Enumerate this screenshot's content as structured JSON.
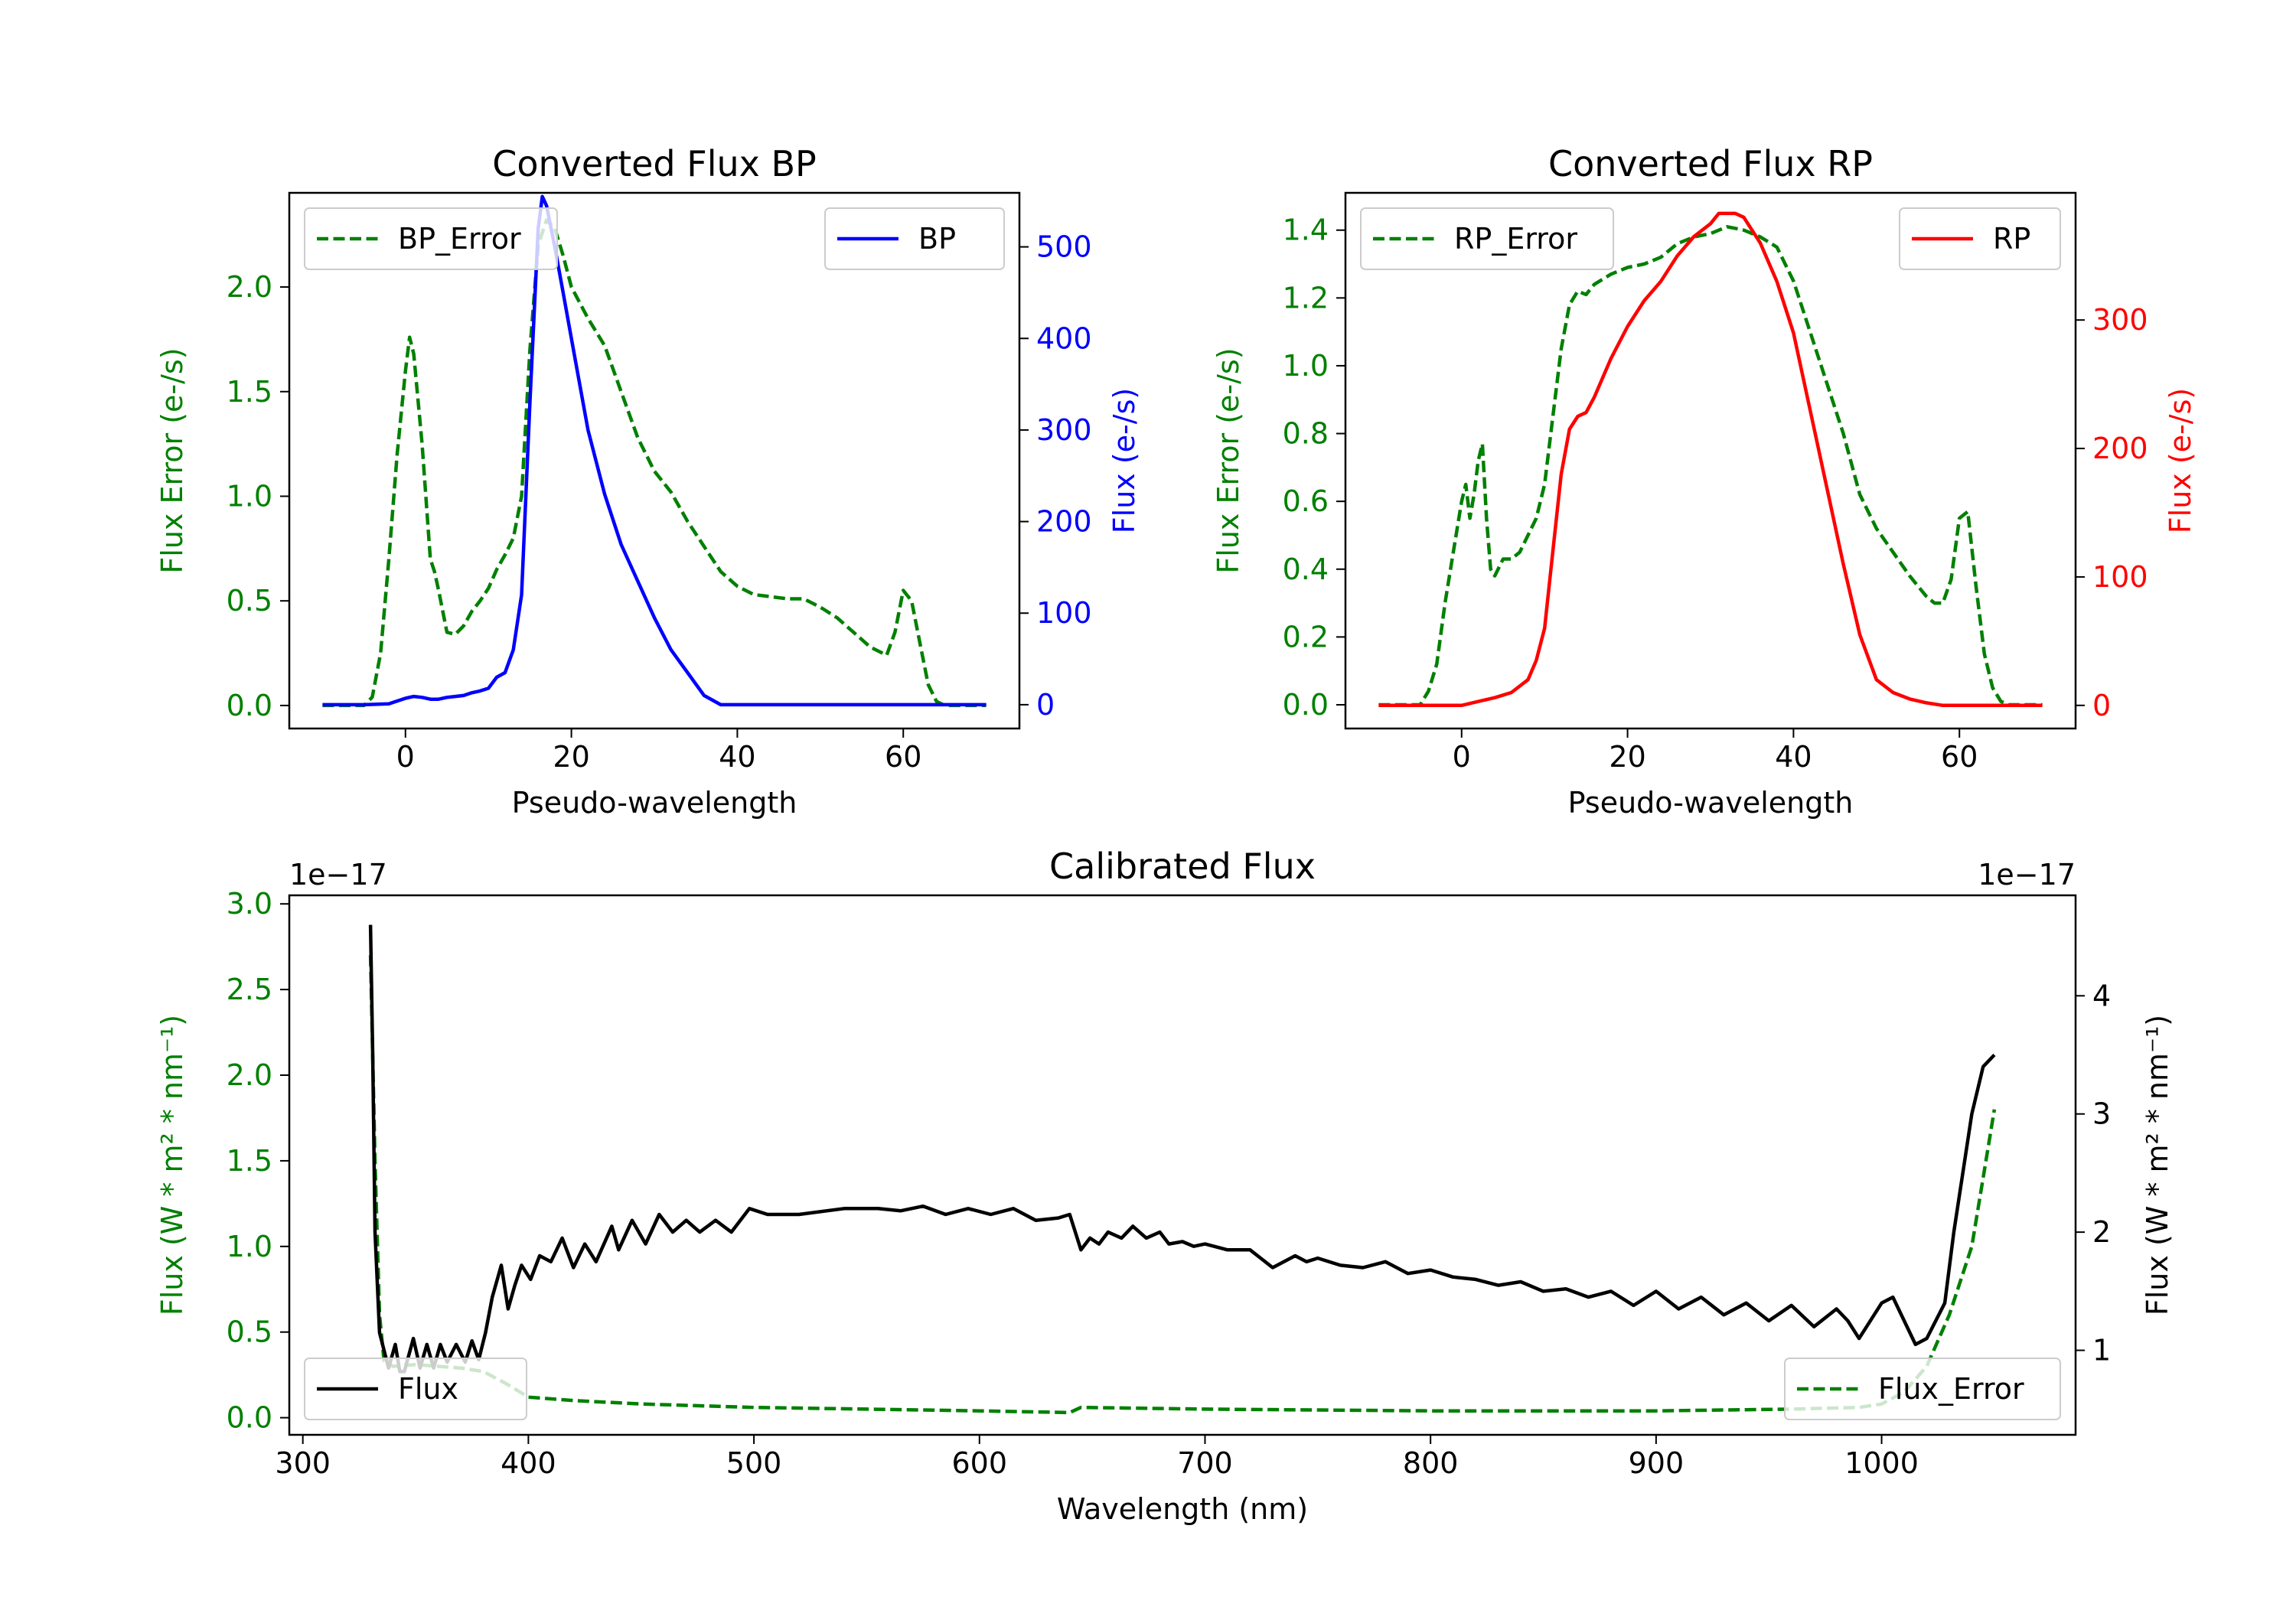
{
  "chart_data": [
    {
      "id": "bp",
      "type": "line",
      "title": "Converted Flux BP",
      "xlabel": "Pseudo-wavelength",
      "ylabel_left": "Flux Error (e-/s)",
      "ylabel_right": "Flux (e-/s)",
      "xlim": [
        -14,
        74
      ],
      "ylim_left": [
        -0.11,
        2.45
      ],
      "ylim_right": [
        -26,
        559
      ],
      "xticks": [
        0,
        20,
        40,
        60
      ],
      "yticks_left": [
        0.0,
        0.5,
        1.0,
        1.5,
        2.0
      ],
      "yticks_left_labels": [
        "0.0",
        "0.5",
        "1.0",
        "1.5",
        "2.0"
      ],
      "yticks_right": [
        0,
        100,
        200,
        300,
        400,
        500
      ],
      "yticks_right_labels": [
        "0",
        "100",
        "200",
        "300",
        "400",
        "500"
      ],
      "colors": {
        "left": "#008000",
        "right": "#0000ff"
      },
      "series": [
        {
          "name": "BP_Error",
          "axis": "left",
          "style": "dashed",
          "color": "#008000",
          "x": [
            -10,
            -5,
            -4,
            -3,
            -2,
            -1,
            0,
            0.5,
            1,
            2,
            3,
            3.5,
            4,
            5,
            6,
            7,
            8,
            9,
            10,
            11,
            12,
            13,
            14,
            15,
            16,
            17,
            18,
            19,
            20,
            22,
            24,
            26,
            28,
            30,
            32,
            34,
            36,
            38,
            40,
            42,
            44,
            46,
            48,
            50,
            52,
            54,
            56,
            58,
            59,
            60,
            61,
            62,
            63,
            64,
            65,
            66,
            68,
            70
          ],
          "values": [
            0,
            0,
            0.04,
            0.25,
            0.7,
            1.2,
            1.6,
            1.76,
            1.68,
            1.25,
            0.7,
            0.64,
            0.55,
            0.35,
            0.34,
            0.38,
            0.45,
            0.5,
            0.56,
            0.65,
            0.72,
            0.8,
            1.0,
            1.7,
            2.2,
            2.32,
            2.28,
            2.15,
            2.0,
            1.85,
            1.72,
            1.5,
            1.28,
            1.12,
            1.02,
            0.88,
            0.76,
            0.64,
            0.57,
            0.53,
            0.52,
            0.51,
            0.51,
            0.47,
            0.42,
            0.35,
            0.28,
            0.24,
            0.35,
            0.55,
            0.5,
            0.3,
            0.1,
            0.02,
            0.0,
            0.0,
            0.0,
            0.0
          ]
        },
        {
          "name": "BP",
          "axis": "right",
          "style": "solid",
          "color": "#0000ff",
          "x": [
            -10,
            -5,
            -2,
            0,
            1,
            2,
            3,
            4,
            5,
            6,
            7,
            8,
            9,
            10,
            11,
            12,
            13,
            14,
            15,
            16,
            16.5,
            17,
            18,
            19,
            20,
            22,
            24,
            26,
            28,
            30,
            32,
            34,
            36,
            38,
            40,
            42,
            44,
            46,
            48,
            50,
            55,
            60,
            65,
            70
          ],
          "values": [
            0,
            0,
            1,
            7,
            9,
            8,
            6,
            6,
            8,
            9,
            10,
            13,
            15,
            18,
            30,
            35,
            60,
            120,
            330,
            520,
            555,
            545,
            500,
            450,
            400,
            300,
            230,
            175,
            135,
            95,
            60,
            35,
            10,
            0,
            0,
            0,
            0,
            0,
            0,
            0,
            0,
            0,
            0,
            0
          ]
        }
      ],
      "legends": [
        {
          "label": "BP_Error",
          "style": "dashed",
          "color": "#008000",
          "placement": "upper left"
        },
        {
          "label": "BP",
          "style": "solid",
          "color": "#0000ff",
          "placement": "upper right"
        }
      ]
    },
    {
      "id": "rp",
      "type": "line",
      "title": "Converted Flux RP",
      "xlabel": "Pseudo-wavelength",
      "ylabel_left": "Flux Error (e-/s)",
      "ylabel_right": "Flux (e-/s)",
      "xlim": [
        -14,
        74
      ],
      "ylim_left": [
        -0.07,
        1.51
      ],
      "ylim_right": [
        -18,
        399
      ],
      "xticks": [
        0,
        20,
        40,
        60
      ],
      "yticks_left": [
        0.0,
        0.2,
        0.4,
        0.6,
        0.8,
        1.0,
        1.2,
        1.4
      ],
      "yticks_left_labels": [
        "0.0",
        "0.2",
        "0.4",
        "0.6",
        "0.8",
        "1.0",
        "1.2",
        "1.4"
      ],
      "yticks_right": [
        0,
        100,
        200,
        300
      ],
      "yticks_right_labels": [
        "0",
        "100",
        "200",
        "300"
      ],
      "colors": {
        "left": "#008000",
        "right": "#ff0000"
      },
      "series": [
        {
          "name": "RP_Error",
          "axis": "left",
          "style": "dashed",
          "color": "#008000",
          "x": [
            -10,
            -5,
            -4,
            -3,
            -2,
            -1,
            0,
            0.5,
            1,
            1.5,
            2,
            2.5,
            3,
            3.5,
            4,
            5,
            6,
            7,
            8,
            9,
            10,
            11,
            12,
            13,
            14,
            15,
            16,
            18,
            20,
            22,
            24,
            26,
            28,
            30,
            32,
            34,
            36,
            38,
            40,
            42,
            44,
            46,
            48,
            50,
            52,
            54,
            55,
            56,
            57,
            58,
            59,
            60,
            61,
            62,
            63,
            64,
            65,
            66,
            68,
            70
          ],
          "values": [
            0,
            0,
            0.04,
            0.12,
            0.3,
            0.45,
            0.6,
            0.65,
            0.55,
            0.62,
            0.72,
            0.77,
            0.55,
            0.4,
            0.38,
            0.43,
            0.43,
            0.45,
            0.5,
            0.55,
            0.65,
            0.85,
            1.05,
            1.18,
            1.22,
            1.21,
            1.24,
            1.27,
            1.29,
            1.3,
            1.32,
            1.36,
            1.38,
            1.39,
            1.41,
            1.4,
            1.38,
            1.35,
            1.25,
            1.1,
            0.95,
            0.8,
            0.62,
            0.52,
            0.45,
            0.38,
            0.35,
            0.32,
            0.3,
            0.3,
            0.37,
            0.55,
            0.57,
            0.35,
            0.15,
            0.05,
            0.01,
            0.0,
            0.0,
            0.0
          ]
        },
        {
          "name": "RP",
          "axis": "right",
          "style": "solid",
          "color": "#ff0000",
          "x": [
            -10,
            -5,
            -2,
            0,
            2,
            4,
            6,
            8,
            9,
            10,
            11,
            12,
            13,
            14,
            15,
            16,
            18,
            20,
            22,
            24,
            26,
            28,
            30,
            31,
            32,
            33,
            34,
            35,
            36,
            38,
            40,
            42,
            44,
            46,
            48,
            50,
            52,
            54,
            56,
            58,
            60,
            62,
            64,
            66,
            68,
            70
          ],
          "values": [
            0,
            0,
            0,
            0,
            3,
            6,
            10,
            20,
            35,
            60,
            120,
            180,
            215,
            225,
            228,
            240,
            270,
            295,
            315,
            330,
            350,
            365,
            375,
            383,
            383,
            383,
            380,
            370,
            360,
            330,
            290,
            230,
            170,
            110,
            55,
            20,
            10,
            5,
            2,
            0,
            0,
            0,
            0,
            0,
            0,
            0
          ]
        }
      ],
      "legends": [
        {
          "label": "RP_Error",
          "style": "dashed",
          "color": "#008000",
          "placement": "upper left"
        },
        {
          "label": "RP",
          "style": "solid",
          "color": "#ff0000",
          "placement": "upper right"
        }
      ]
    },
    {
      "id": "cal",
      "type": "line",
      "title": "Calibrated Flux",
      "xlabel": "Wavelength (nm)",
      "ylabel_left": "Flux (W * m² * nm⁻¹)",
      "ylabel_right": "Flux (W * m² * nm⁻¹)",
      "offset_left": "1e−17",
      "offset_right": "1e−17",
      "xlim": [
        294,
        1086
      ],
      "ylim_left": [
        -0.1,
        3.05
      ],
      "ylim_right": [
        0.285,
        4.85
      ],
      "xticks": [
        300,
        400,
        500,
        600,
        700,
        800,
        900,
        1000
      ],
      "yticks_left": [
        0.0,
        0.5,
        1.0,
        1.5,
        2.0,
        2.5,
        3.0
      ],
      "yticks_left_labels": [
        "0.0",
        "0.5",
        "1.0",
        "1.5",
        "2.0",
        "2.5",
        "3.0"
      ],
      "yticks_right": [
        1,
        2,
        3,
        4
      ],
      "yticks_right_labels": [
        "1",
        "2",
        "3",
        "4"
      ],
      "colors": {
        "left": "#008000",
        "right": "#000000"
      },
      "series": [
        {
          "name": "Flux_Error",
          "axis": "left",
          "style": "dashed",
          "color": "#008000",
          "x": [
            330,
            332,
            334,
            336,
            340,
            350,
            360,
            370,
            380,
            390,
            400,
            420,
            450,
            500,
            550,
            600,
            640,
            645,
            700,
            800,
            900,
            960,
            990,
            1000,
            1010,
            1020,
            1030,
            1040,
            1045,
            1050
          ],
          "values": [
            2.7,
            1.5,
            0.6,
            0.33,
            0.3,
            0.31,
            0.3,
            0.29,
            0.27,
            0.2,
            0.12,
            0.1,
            0.08,
            0.06,
            0.05,
            0.04,
            0.03,
            0.06,
            0.05,
            0.04,
            0.04,
            0.05,
            0.06,
            0.08,
            0.15,
            0.3,
            0.6,
            1.0,
            1.4,
            1.8
          ]
        },
        {
          "name": "Flux",
          "axis": "right",
          "style": "solid",
          "color": "#000000",
          "x": [
            330,
            331,
            332,
            334,
            336,
            338,
            341,
            343,
            345,
            349,
            352,
            355,
            358,
            361,
            364,
            368,
            372,
            375,
            378,
            381,
            384,
            388,
            391,
            394,
            397,
            401,
            405,
            410,
            415,
            420,
            425,
            430,
            437,
            440,
            446,
            452,
            458,
            464,
            470,
            476,
            483,
            490,
            498,
            506,
            520,
            540,
            555,
            565,
            575,
            585,
            595,
            605,
            615,
            625,
            635,
            640,
            645,
            649,
            653,
            657,
            663,
            668,
            674,
            680,
            684,
            690,
            695,
            700,
            710,
            720,
            730,
            740,
            745,
            750,
            760,
            770,
            780,
            790,
            800,
            810,
            820,
            830,
            840,
            850,
            860,
            870,
            880,
            890,
            900,
            910,
            920,
            930,
            940,
            950,
            960,
            970,
            980,
            985,
            990,
            1000,
            1005,
            1015,
            1020,
            1028,
            1032,
            1040,
            1045,
            1050
          ],
          "values": [
            4.6,
            3.5,
            2.0,
            1.15,
            1.0,
            0.85,
            1.05,
            0.82,
            0.82,
            1.1,
            0.85,
            1.05,
            0.85,
            1.05,
            0.9,
            1.05,
            0.9,
            1.08,
            0.92,
            1.15,
            1.45,
            1.72,
            1.35,
            1.55,
            1.72,
            1.6,
            1.8,
            1.75,
            1.95,
            1.7,
            1.9,
            1.75,
            2.05,
            1.85,
            2.1,
            1.9,
            2.15,
            2.0,
            2.1,
            2.0,
            2.1,
            2.0,
            2.2,
            2.15,
            2.15,
            2.2,
            2.2,
            2.18,
            2.22,
            2.15,
            2.2,
            2.15,
            2.2,
            2.1,
            2.12,
            2.15,
            1.85,
            1.95,
            1.9,
            2.0,
            1.95,
            2.05,
            1.95,
            2.0,
            1.9,
            1.92,
            1.88,
            1.9,
            1.85,
            1.85,
            1.7,
            1.8,
            1.75,
            1.78,
            1.72,
            1.7,
            1.75,
            1.65,
            1.68,
            1.62,
            1.6,
            1.55,
            1.58,
            1.5,
            1.52,
            1.45,
            1.5,
            1.38,
            1.5,
            1.35,
            1.45,
            1.3,
            1.4,
            1.25,
            1.38,
            1.2,
            1.35,
            1.25,
            1.1,
            1.4,
            1.45,
            1.05,
            1.1,
            1.4,
            2.0,
            3.0,
            3.4,
            3.5
          ]
        }
      ],
      "legends": [
        {
          "label": "Flux",
          "style": "solid",
          "color": "#000000",
          "placement": "lower left"
        },
        {
          "label": "Flux_Error",
          "style": "dashed",
          "color": "#008000",
          "placement": "lower right"
        }
      ]
    }
  ]
}
